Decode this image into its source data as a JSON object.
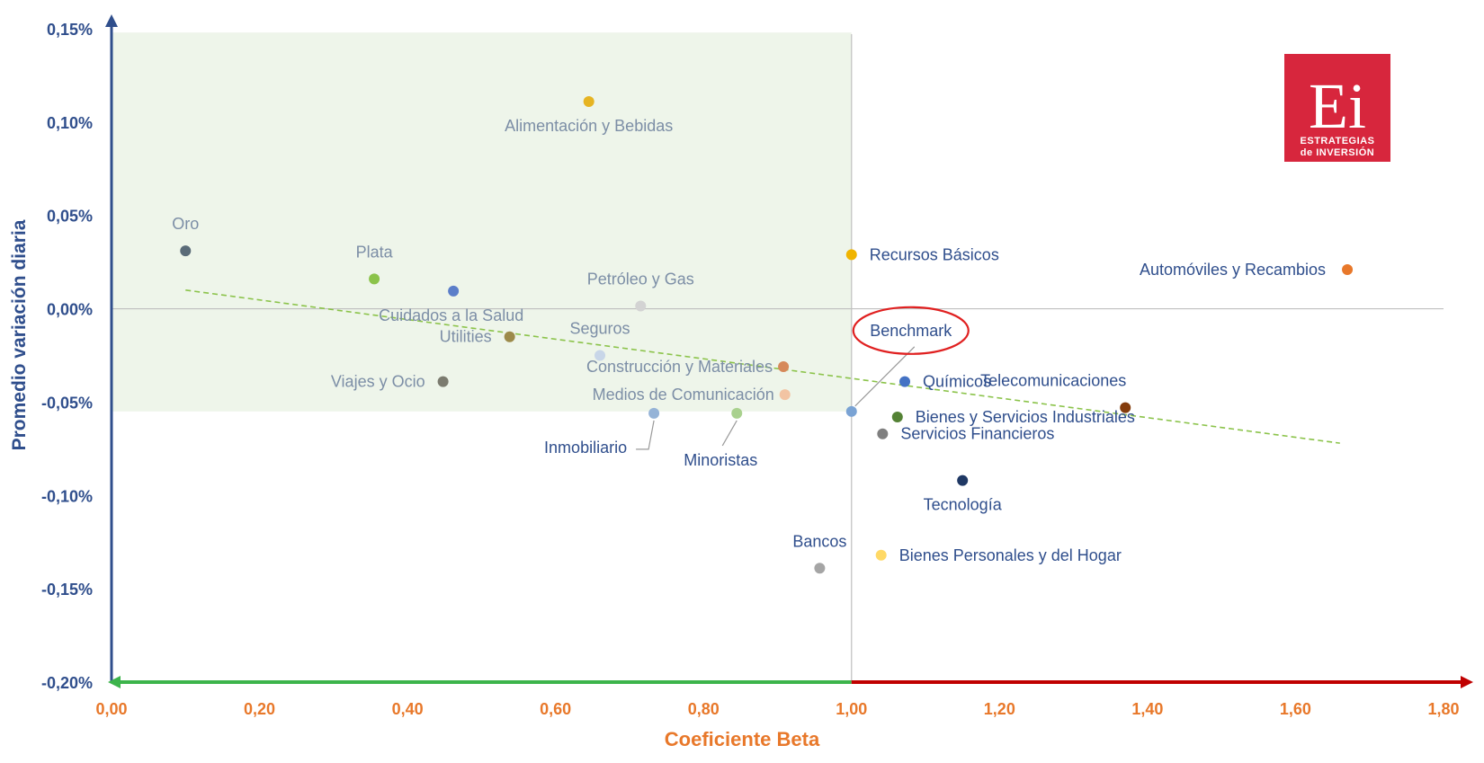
{
  "chart_data": {
    "type": "scatter",
    "title": "",
    "xlabel": "Coeficiente Beta",
    "ylabel": "Promedio variación diaria",
    "xlim": [
      0,
      1.8
    ],
    "ylim": [
      -0.2,
      0.15
    ],
    "x_tick_labels": [
      "0,00",
      "0,20",
      "0,40",
      "0,60",
      "0,80",
      "1,00",
      "1,20",
      "1,40",
      "1,60",
      "1,80"
    ],
    "x_tick_values": [
      0,
      0.2,
      0.4,
      0.6,
      0.8,
      1.0,
      1.2,
      1.4,
      1.6,
      1.8
    ],
    "y_tick_labels": [
      "0,15%",
      "0,10%",
      "0,05%",
      "0,00%",
      "-0,05%",
      "-0,10%",
      "-0,15%",
      "-0,20%"
    ],
    "y_tick_values": [
      0.15,
      0.1,
      0.05,
      0.0,
      -0.05,
      -0.1,
      -0.15,
      -0.2
    ],
    "quadrant_highlight": {
      "x": [
        0,
        1.0
      ],
      "y": [
        -0.055,
        0.148
      ],
      "color": "#eef5ea"
    },
    "trendline": {
      "x": [
        0.1,
        1.66
      ],
      "y": [
        0.01,
        -0.072
      ],
      "color": "#8bc34a"
    },
    "points": [
      {
        "label": "Alimentación y Bebidas",
        "x": 0.645,
        "y": 0.111,
        "color": "#e6b422",
        "label_color": "#7c8ea6"
      },
      {
        "label": "Oro",
        "x": 0.1,
        "y": 0.031,
        "color": "#5a6b78",
        "label_color": "#7c8ea6"
      },
      {
        "label": "Plata",
        "x": 0.355,
        "y": 0.016,
        "color": "#8bc34a",
        "label_color": "#7c8ea6"
      },
      {
        "label": "Cuidados a la Salud",
        "x": 0.462,
        "y": 0.0095,
        "color": "#5b7ec9",
        "label_color": "#7c8ea6"
      },
      {
        "label": "Petróleo y Gas",
        "x": 0.715,
        "y": 0.0015,
        "color": "#d3d3d3",
        "label_color": "#7c8ea6"
      },
      {
        "label": "Utilities",
        "x": 0.538,
        "y": -0.015,
        "color": "#9c8a4a",
        "label_color": "#7c8ea6"
      },
      {
        "label": "Seguros",
        "x": 0.66,
        "y": -0.025,
        "color": "#c8d6e8",
        "label_color": "#7c8ea6"
      },
      {
        "label": "Construcción y Materiales",
        "x": 0.908,
        "y": -0.031,
        "color": "#d6895a",
        "label_color": "#7c8ea6"
      },
      {
        "label": "Viajes y Ocio",
        "x": 0.448,
        "y": -0.039,
        "color": "#7b7b6f",
        "label_color": "#7c8ea6"
      },
      {
        "label": "Medios de Comunicación",
        "x": 0.91,
        "y": -0.046,
        "color": "#f2c4a3",
        "label_color": "#7c8ea6"
      },
      {
        "label": "Inmobiliario",
        "x": 0.733,
        "y": -0.056,
        "color": "#95b3d7",
        "label_color": "#2f4e8c"
      },
      {
        "label": "Minoristas",
        "x": 0.845,
        "y": -0.056,
        "color": "#a9d18e",
        "label_color": "#2f4e8c"
      },
      {
        "label": "Benchmark",
        "x": 1.0,
        "y": -0.055,
        "color": "#7aa3d4",
        "label_color": "#2f4e8c"
      },
      {
        "label": "Recursos Básicos",
        "x": 1.0,
        "y": 0.029,
        "color": "#f0b400",
        "label_color": "#2f4e8c"
      },
      {
        "label": "Automóviles y Recambios",
        "x": 1.67,
        "y": 0.021,
        "color": "#e8782a",
        "label_color": "#2f4e8c"
      },
      {
        "label": "Químicos",
        "x": 1.072,
        "y": -0.039,
        "color": "#4472c4",
        "label_color": "#2f4e8c"
      },
      {
        "label": "Telecomunicaciones",
        "x": 1.37,
        "y": -0.053,
        "color": "#843c0c",
        "label_color": "#2f4e8c"
      },
      {
        "label": "Bienes y Servicios Industriales",
        "x": 1.062,
        "y": -0.058,
        "color": "#548235",
        "label_color": "#2f4e8c"
      },
      {
        "label": "Servicios Financieros",
        "x": 1.042,
        "y": -0.067,
        "color": "#7f7f7f",
        "label_color": "#2f4e8c"
      },
      {
        "label": "Tecnología",
        "x": 1.15,
        "y": -0.092,
        "color": "#1f3864",
        "label_color": "#2f4e8c"
      },
      {
        "label": "Bancos",
        "x": 0.957,
        "y": -0.139,
        "color": "#a5a5a5",
        "label_color": "#2f4e8c"
      },
      {
        "label": "Bienes Personales y del Hogar",
        "x": 1.04,
        "y": -0.132,
        "color": "#ffd966",
        "label_color": "#2f4e8c"
      }
    ]
  },
  "logo": {
    "letters": "Ei",
    "line1": "ESTRATEGIAS",
    "line2": "de INVERSIÓN",
    "color": "#d7263d"
  },
  "colors": {
    "y_axis": "#2f4e8c",
    "x_axis_left": "#3cb44b",
    "x_axis_right": "#c00000",
    "benchmark_ring": "#e02020"
  }
}
